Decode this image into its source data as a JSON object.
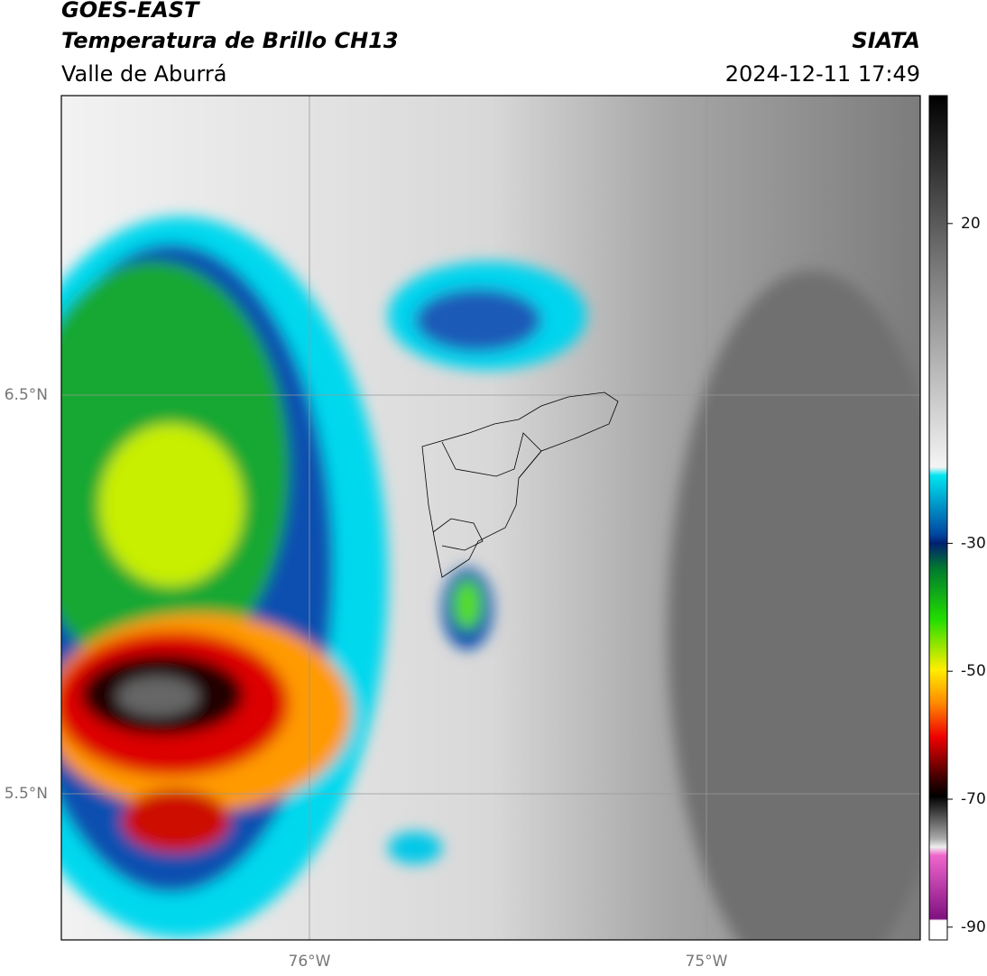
{
  "header": {
    "title": "GOES-EAST",
    "subtitle": "Temperatura de Brillo CH13",
    "region": "Valle de Aburrá",
    "source": "SIATA",
    "datetime": "2024-12-11 17:49"
  },
  "map": {
    "lat_labels": [
      "6.5°N",
      "5.5°N"
    ],
    "lon_labels": [
      "76°W",
      "75°W"
    ]
  },
  "colorbar": {
    "range": [
      -92,
      40
    ],
    "ticks": [
      20,
      -30,
      -50,
      -70,
      -90
    ]
  }
}
